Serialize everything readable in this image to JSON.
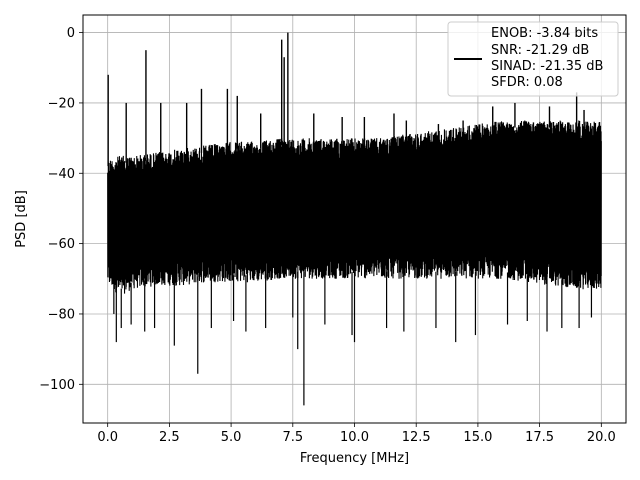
{
  "chart_data": {
    "type": "line",
    "title": "",
    "xlabel": "Frequency [MHz]",
    "ylabel": "PSD [dB]",
    "xlim": [
      -1.0,
      21.0
    ],
    "ylim": [
      -111.0,
      5.0
    ],
    "grid": true,
    "legend_position": "top-right",
    "x_ticks": [
      0.0,
      2.5,
      5.0,
      7.5,
      10.0,
      12.5,
      15.0,
      17.5,
      20.0
    ],
    "x_tick_labels": [
      "0.0",
      "2.5",
      "5.0",
      "7.5",
      "10.0",
      "12.5",
      "15.0",
      "17.5",
      "20.0"
    ],
    "y_ticks": [
      0,
      -20,
      -40,
      -60,
      -80,
      -100
    ],
    "y_tick_labels": [
      "0",
      "−20",
      "−40",
      "−60",
      "−80",
      "−100"
    ],
    "series": [
      {
        "name": "ENOB: -3.84 bits",
        "color": "#000000",
        "note_lines": [
          "SNR: -21.29 dB",
          "SINAD: -21.35 dB",
          "SFDR: 0.08"
        ],
        "envelope": {
          "x": [
            0.0,
            0.5,
            1.0,
            2.0,
            3.0,
            4.0,
            5.0,
            6.0,
            7.0,
            8.0,
            9.0,
            10.0,
            11.0,
            12.0,
            13.0,
            14.0,
            15.0,
            16.0,
            17.0,
            18.0,
            19.0,
            20.0
          ],
          "upper": [
            -36,
            -35,
            -35,
            -34,
            -33,
            -32,
            -31,
            -31,
            -30,
            -30,
            -30,
            -30,
            -30,
            -29,
            -28,
            -27,
            -26,
            -25,
            -25,
            -25,
            -25,
            -25
          ],
          "lower": [
            -72,
            -75,
            -73,
            -72,
            -72,
            -71,
            -71,
            -71,
            -70,
            -70,
            -70,
            -70,
            -70,
            -70,
            -70,
            -70,
            -70,
            -70,
            -71,
            -72,
            -73,
            -73
          ]
        },
        "spikes_up": [
          {
            "x": 0.02,
            "y": -12
          },
          {
            "x": 0.75,
            "y": -20
          },
          {
            "x": 1.55,
            "y": -5
          },
          {
            "x": 2.15,
            "y": -20
          },
          {
            "x": 3.2,
            "y": -20
          },
          {
            "x": 3.8,
            "y": -16
          },
          {
            "x": 4.85,
            "y": -16
          },
          {
            "x": 5.25,
            "y": -18
          },
          {
            "x": 6.2,
            "y": -23
          },
          {
            "x": 7.05,
            "y": -2
          },
          {
            "x": 7.15,
            "y": -7
          },
          {
            "x": 7.3,
            "y": 0
          },
          {
            "x": 8.35,
            "y": -23
          },
          {
            "x": 9.5,
            "y": -24
          },
          {
            "x": 10.4,
            "y": -24
          },
          {
            "x": 11.6,
            "y": -23
          },
          {
            "x": 12.1,
            "y": -25
          },
          {
            "x": 13.4,
            "y": -26
          },
          {
            "x": 14.4,
            "y": -25
          },
          {
            "x": 15.6,
            "y": -21
          },
          {
            "x": 16.5,
            "y": -20
          },
          {
            "x": 17.9,
            "y": -21
          },
          {
            "x": 19.0,
            "y": -17
          },
          {
            "x": 19.3,
            "y": -22
          }
        ],
        "spikes_down": [
          {
            "x": 0.25,
            "y": -80
          },
          {
            "x": 0.35,
            "y": -88
          },
          {
            "x": 0.55,
            "y": -84
          },
          {
            "x": 0.95,
            "y": -83
          },
          {
            "x": 1.5,
            "y": -85
          },
          {
            "x": 1.9,
            "y": -84
          },
          {
            "x": 2.7,
            "y": -89
          },
          {
            "x": 3.65,
            "y": -97
          },
          {
            "x": 4.2,
            "y": -84
          },
          {
            "x": 5.1,
            "y": -82
          },
          {
            "x": 5.6,
            "y": -85
          },
          {
            "x": 6.4,
            "y": -84
          },
          {
            "x": 7.5,
            "y": -81
          },
          {
            "x": 7.7,
            "y": -90
          },
          {
            "x": 7.95,
            "y": -106
          },
          {
            "x": 8.8,
            "y": -83
          },
          {
            "x": 9.9,
            "y": -86
          },
          {
            "x": 10.0,
            "y": -88
          },
          {
            "x": 11.3,
            "y": -84
          },
          {
            "x": 12.0,
            "y": -85
          },
          {
            "x": 13.3,
            "y": -84
          },
          {
            "x": 14.1,
            "y": -88
          },
          {
            "x": 14.9,
            "y": -86
          },
          {
            "x": 16.2,
            "y": -83
          },
          {
            "x": 17.0,
            "y": -82
          },
          {
            "x": 17.8,
            "y": -85
          },
          {
            "x": 18.4,
            "y": -84
          },
          {
            "x": 19.1,
            "y": -84
          },
          {
            "x": 19.6,
            "y": -81
          }
        ]
      }
    ]
  }
}
